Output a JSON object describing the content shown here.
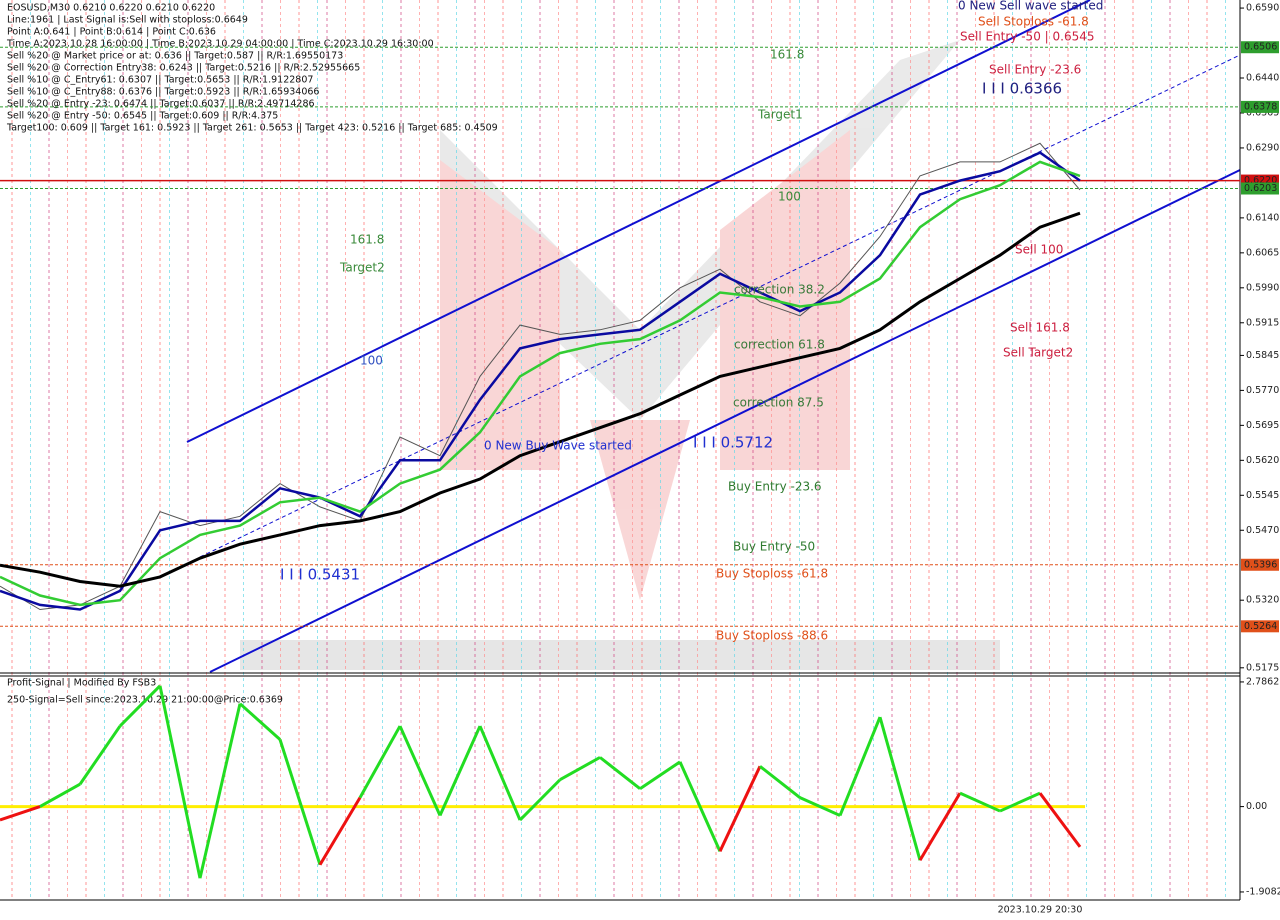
{
  "info": [
    "EOSUSD,M30  0.6210 0.6220 0.6210 0.6220",
    "Line:1961 | Last Signal is:Sell with stoploss:0.6649",
    "Point A:0.641 | Point B:0.614 | Point C:0.636",
    "Time A:2023.10.28 16:00:00 | Time B:2023.10.29 04:00:00 | Time C:2023.10.29 16:30:00",
    "Sell %20 @ Market price or at: 0.636 || Target:0.587 || R/R:1.69550173",
    "Sell %20 @ Correction Entry38: 0.6243 || Target:0.5216 || R/R:2.52955665",
    "Sell %10 @ C_Entry61: 0.6307 || Target:0.5653 || R/R:1.9122807",
    "Sell %10 @ C_Entry88: 0.6376 || Target:0.5923 || R/R:1.65934066",
    "Sell %20 @ Entry -23: 0.6474 || Target:0.6037 || R/R:2.49714286",
    "Sell %20 @ Entry -50: 0.6545 || Target:0.609 || R/R:4.375",
    "Target100: 0.609 || Target 161: 0.5923 || Target 261: 0.5653 || Target 423: 0.5216 || Target 685: 0.4509"
  ],
  "x_label": "2023.10.29 20:30",
  "chart_data": [
    {
      "type": "line",
      "ylim": [
        0.5166,
        0.6603
      ],
      "yticks": [
        {
          "value": 0.659,
          "label": "0.6590"
        },
        {
          "value": 0.644,
          "label": "0.6440"
        },
        {
          "value": 0.6365,
          "label": "0.6365"
        },
        {
          "value": 0.629,
          "label": "0.6290"
        },
        {
          "value": 0.614,
          "label": "0.6140"
        },
        {
          "value": 0.6065,
          "label": "0.6065"
        },
        {
          "value": 0.599,
          "label": "0.5990"
        },
        {
          "value": 0.5915,
          "label": "0.5915"
        },
        {
          "value": 0.5845,
          "label": "0.5845"
        },
        {
          "value": 0.577,
          "label": "0.5770"
        },
        {
          "value": 0.5695,
          "label": "0.5695"
        },
        {
          "value": 0.562,
          "label": "0.5620"
        },
        {
          "value": 0.5545,
          "label": "0.5545"
        },
        {
          "value": 0.547,
          "label": "0.5470"
        },
        {
          "value": 0.532,
          "label": "0.5320"
        },
        {
          "value": 0.5175,
          "label": "0.5175"
        }
      ],
      "levels": [
        {
          "value": 0.6506,
          "label": "0.6506",
          "color": "#2e9e2e"
        },
        {
          "value": 0.6378,
          "label": "0.6378",
          "color": "#2e9e2e"
        },
        {
          "value": 0.622,
          "label": "0.6220",
          "color": "#d01010"
        },
        {
          "value": 0.6203,
          "label": "0.6203",
          "color": "#2e9e2e"
        },
        {
          "value": 0.5396,
          "label": "0.5396",
          "color": "#e0501a"
        },
        {
          "value": 0.5264,
          "label": "0.5264",
          "color": "#e0501a"
        }
      ],
      "series": [
        {
          "color": "#555555",
          "values": [
            0.535,
            0.53,
            0.531,
            0.535,
            0.551,
            0.548,
            0.55,
            0.557,
            0.552,
            0.549,
            0.567,
            0.563,
            0.58,
            0.591,
            0.589,
            0.59,
            0.592,
            0.599,
            0.603,
            0.596,
            0.593,
            0.6,
            0.61,
            0.623,
            0.626,
            0.626,
            0.63,
            0.62
          ]
        },
        {
          "color": "#0a0aa0",
          "values": [
            0.534,
            0.531,
            0.53,
            0.534,
            0.547,
            0.549,
            0.549,
            0.556,
            0.554,
            0.55,
            0.562,
            0.562,
            0.575,
            0.586,
            0.588,
            0.589,
            0.59,
            0.596,
            0.602,
            0.598,
            0.594,
            0.598,
            0.606,
            0.619,
            0.622,
            0.624,
            0.628,
            0.622
          ]
        },
        {
          "color": "#33cc33",
          "values": [
            0.537,
            0.533,
            0.531,
            0.532,
            0.541,
            0.546,
            0.548,
            0.553,
            0.554,
            0.551,
            0.557,
            0.56,
            0.568,
            0.58,
            0.585,
            0.587,
            0.588,
            0.592,
            0.598,
            0.597,
            0.595,
            0.596,
            0.601,
            0.612,
            0.618,
            0.621,
            0.626,
            0.623
          ]
        },
        {
          "color": "#000000",
          "values": [
            0.5395,
            0.538,
            0.536,
            0.535,
            0.537,
            0.541,
            0.544,
            0.546,
            0.548,
            0.549,
            0.551,
            0.555,
            0.558,
            0.563,
            0.566,
            0.569,
            0.572,
            0.576,
            0.58,
            0.582,
            0.584,
            0.586,
            0.59,
            0.596,
            0.601,
            0.606,
            0.612,
            0.615
          ]
        }
      ],
      "annotations": [
        {
          "text": "161.8",
          "color": "#3a8a3a"
        },
        {
          "text": "Target1",
          "color": "#3a8a3a"
        },
        {
          "text": "100",
          "color": "#3a8a3a"
        },
        {
          "text": "161.8",
          "color": "#3a8a3a"
        },
        {
          "text": "Target2",
          "color": "#3a8a3a"
        },
        {
          "text": "100",
          "color": "#3050c0"
        },
        {
          "text": "0 New Buy Wave started",
          "color": "#2030d0"
        },
        {
          "text": "I I I 0.5712",
          "color": "#2030d0"
        },
        {
          "text": "correction 38.2",
          "color": "#3a7a3a"
        },
        {
          "text": "correction 61.8",
          "color": "#3a7a3a"
        },
        {
          "text": "correction 87.5",
          "color": "#3a7a3a"
        },
        {
          "text": "Buy Entry -23.6",
          "color": "#2e7a2e"
        },
        {
          "text": "Buy Entry -50",
          "color": "#2e7a2e"
        },
        {
          "text": "Buy Stoploss -61.8",
          "color": "#e0501a"
        },
        {
          "text": "Buy Stoploss -88.6",
          "color": "#e0501a"
        },
        {
          "text": "I I I 0.5431",
          "color": "#2030d0"
        },
        {
          "text": "Sell 100",
          "color": "#cc2040"
        },
        {
          "text": "Sell 161.8",
          "color": "#cc2040"
        },
        {
          "text": "Sell Target2",
          "color": "#cc2040"
        },
        {
          "text": "Sell Entry -23.6",
          "color": "#cc2040"
        },
        {
          "text": "Sell Entry -50 | 0.6545",
          "color": "#cc2040"
        },
        {
          "text": "Sell Stoploss -61.8",
          "color": "#e0501a"
        },
        {
          "text": "0 New Sell wave started",
          "color": "#202080"
        },
        {
          "text": "I I I 0.6366",
          "color": "#202080"
        }
      ]
    },
    {
      "type": "oscillator",
      "title": "Profit-Signal | Modified By FSB3",
      "subtitle": "250-Signal=Sell since:2023.10.29 21:00:00@Price:0.6369",
      "ylim": [
        -2.088,
        2.919
      ],
      "yticks": [
        2.7862,
        {
          "value": 0,
          "label": "0.00"
        },
        -1.9082
      ],
      "colors": {
        "up": "#22dd22",
        "down": "#ee1111",
        "zero": "#ffee00"
      },
      "values": [
        -0.3,
        0.0,
        0.5,
        1.8,
        2.7,
        -1.6,
        2.3,
        1.5,
        -1.3,
        0.2,
        1.8,
        -0.2,
        1.8,
        -0.3,
        0.6,
        1.1,
        0.4,
        1.0,
        -1.0,
        0.9,
        0.2,
        -0.2,
        2.0,
        -1.2,
        0.3,
        -0.1,
        0.3,
        -0.9
      ]
    }
  ]
}
